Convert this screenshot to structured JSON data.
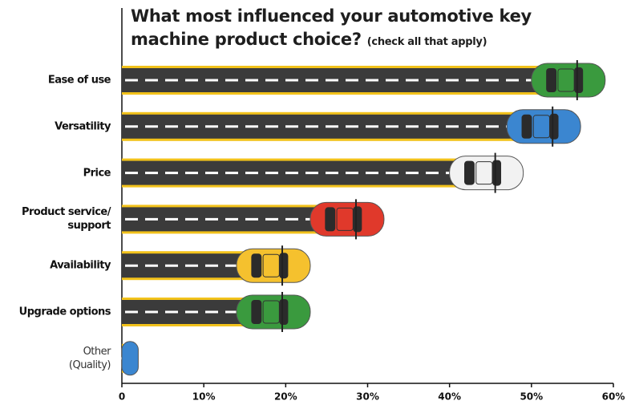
{
  "chart_data": {
    "type": "bar",
    "orientation": "horizontal",
    "title": "What most influenced your automotive key machine product choice?",
    "subtitle": "(check all that apply)",
    "categories": [
      "Ease of use",
      "Versatility",
      "Price",
      "Product service/\nsupport",
      "Availability",
      "Upgrade options",
      "Other\n(Quality)"
    ],
    "values": [
      59,
      56,
      49,
      32,
      23,
      23,
      2
    ],
    "colors": [
      "#3a9a3e",
      "#3b86d0",
      "#f2f2f2",
      "#e0392b",
      "#f5c12e",
      "#3a9a3e",
      "#3b86d0"
    ],
    "xlim": [
      0,
      60
    ],
    "xticks": [
      0,
      {
        "value": 10,
        "label": "10%"
      },
      {
        "value": 20,
        "label": "20%"
      },
      {
        "value": 30,
        "label": "30%"
      },
      {
        "value": 40,
        "label": "40%"
      },
      {
        "value": 50,
        "label": "50%"
      },
      {
        "value": 60,
        "label": "60%"
      }
    ]
  }
}
